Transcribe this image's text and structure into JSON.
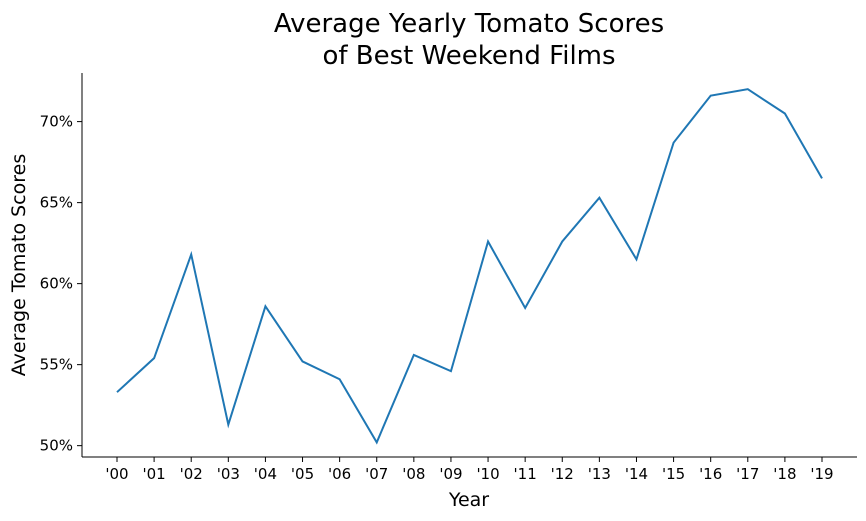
{
  "chart_data": {
    "type": "line",
    "title_lines": [
      "Average Yearly Tomato Scores",
      "of Best Weekend Films"
    ],
    "xlabel": "Year",
    "ylabel": "Average Tomato Scores",
    "categories": [
      "'00",
      "'01",
      "'02",
      "'03",
      "'04",
      "'05",
      "'06",
      "'07",
      "'08",
      "'09",
      "'10",
      "'11",
      "'12",
      "'13",
      "'14",
      "'15",
      "'16",
      "'17",
      "'18",
      "'19"
    ],
    "values": [
      53.3,
      55.4,
      61.8,
      51.3,
      58.6,
      55.2,
      54.1,
      50.2,
      55.6,
      54.6,
      62.6,
      58.5,
      62.6,
      65.3,
      61.5,
      68.7,
      71.6,
      72.0,
      70.5,
      66.5
    ],
    "yticks": [
      50,
      55,
      60,
      65,
      70
    ],
    "ytick_labels": [
      "50%",
      "55%",
      "60%",
      "65%",
      "70%"
    ],
    "ylim": [
      49.3,
      73.0
    ],
    "line_color": "#1f77b4",
    "grid": false,
    "legend": "none"
  }
}
